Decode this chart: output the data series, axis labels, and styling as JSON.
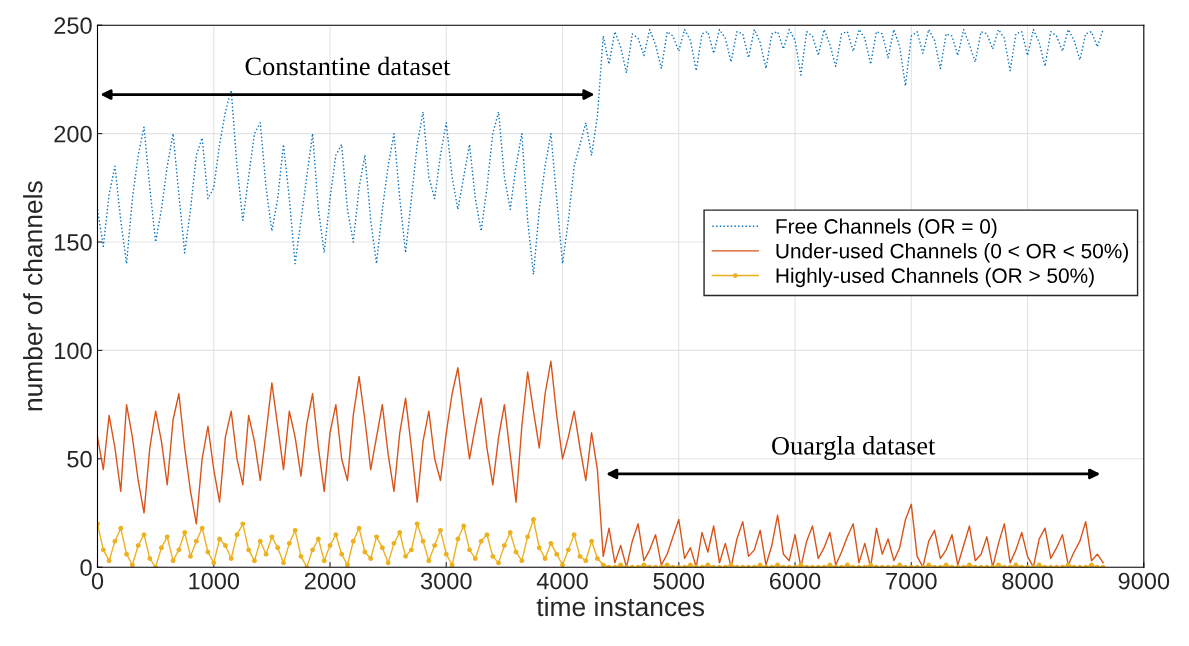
{
  "chart_data": {
    "type": "line",
    "xlabel": "time instances",
    "ylabel": "number of channels",
    "xlim": [
      0,
      9000
    ],
    "xticks": [
      0,
      1000,
      2000,
      3000,
      4000,
      5000,
      6000,
      7000,
      8000,
      9000
    ],
    "ylim": [
      0,
      250
    ],
    "yticks": [
      0,
      50,
      100,
      150,
      200,
      250
    ],
    "grid": true,
    "legend": "right",
    "annotations": [
      "Constantine dataset",
      "Ouargla dataset"
    ],
    "x": [
      0,
      50,
      100,
      150,
      200,
      250,
      300,
      350,
      400,
      450,
      500,
      550,
      600,
      650,
      700,
      750,
      800,
      850,
      900,
      950,
      1000,
      1050,
      1100,
      1150,
      1200,
      1250,
      1300,
      1350,
      1400,
      1450,
      1500,
      1550,
      1600,
      1650,
      1700,
      1750,
      1800,
      1850,
      1900,
      1950,
      2000,
      2050,
      2100,
      2150,
      2200,
      2250,
      2300,
      2350,
      2400,
      2450,
      2500,
      2550,
      2600,
      2650,
      2700,
      2750,
      2800,
      2850,
      2900,
      2950,
      3000,
      3050,
      3100,
      3150,
      3200,
      3250,
      3300,
      3350,
      3400,
      3450,
      3500,
      3550,
      3600,
      3650,
      3700,
      3750,
      3800,
      3850,
      3900,
      3950,
      4000,
      4050,
      4100,
      4150,
      4200,
      4250,
      4300,
      4350,
      4400,
      4450,
      4500,
      4550,
      4600,
      4650,
      4700,
      4750,
      4800,
      4850,
      4900,
      4950,
      5000,
      5050,
      5100,
      5150,
      5200,
      5250,
      5300,
      5350,
      5400,
      5450,
      5500,
      5550,
      5600,
      5650,
      5700,
      5750,
      5800,
      5850,
      5900,
      5950,
      6000,
      6050,
      6100,
      6150,
      6200,
      6250,
      6300,
      6350,
      6400,
      6450,
      6500,
      6550,
      6600,
      6650,
      6700,
      6750,
      6800,
      6850,
      6900,
      6950,
      7000,
      7050,
      7100,
      7150,
      7200,
      7250,
      7300,
      7350,
      7400,
      7450,
      7500,
      7550,
      7600,
      7650,
      7700,
      7750,
      7800,
      7850,
      7900,
      7950,
      8000,
      8050,
      8100,
      8150,
      8200,
      8250,
      8300,
      8350,
      8400,
      8450,
      8500,
      8550,
      8600,
      8650
    ],
    "series": [
      {
        "name": "Free Channels (OR = 0)",
        "color": "#0072bd",
        "line_style": "dotted",
        "marker": "none",
        "values": [
          165,
          148,
          172,
          185,
          160,
          140,
          170,
          190,
          203,
          175,
          150,
          165,
          185,
          200,
          172,
          145,
          165,
          190,
          198,
          170,
          175,
          195,
          210,
          220,
          185,
          160,
          180,
          200,
          205,
          175,
          155,
          170,
          195,
          170,
          140,
          160,
          180,
          200,
          165,
          145,
          170,
          190,
          195,
          165,
          150,
          175,
          190,
          160,
          140,
          165,
          185,
          200,
          170,
          145,
          170,
          195,
          210,
          180,
          170,
          190,
          205,
          180,
          165,
          180,
          195,
          170,
          155,
          175,
          200,
          210,
          180,
          165,
          185,
          200,
          160,
          135,
          165,
          185,
          200,
          170,
          140,
          160,
          185,
          195,
          205,
          190,
          208,
          245,
          232,
          247,
          240,
          228,
          246,
          244,
          236,
          248,
          241,
          230,
          247,
          245,
          238,
          248,
          243,
          229,
          246,
          247,
          237,
          248,
          244,
          233,
          247,
          246,
          235,
          248,
          242,
          230,
          246,
          247,
          239,
          248,
          243,
          227,
          247,
          245,
          236,
          248,
          241,
          231,
          246,
          247,
          238,
          248,
          244,
          232,
          247,
          246,
          235,
          248,
          240,
          222,
          245,
          247,
          237,
          248,
          243,
          230,
          246,
          245,
          236,
          248,
          241,
          233,
          247,
          246,
          239,
          248,
          244,
          229,
          246,
          247,
          236,
          248,
          242,
          231,
          247,
          245,
          238,
          248,
          243,
          234,
          246,
          247,
          240,
          248
        ]
      },
      {
        "name": "Under-used Channels (0 < OR < 50%)",
        "color": "#d95319",
        "line_style": "solid",
        "marker": "none",
        "values": [
          60,
          45,
          70,
          55,
          35,
          75,
          60,
          40,
          25,
          55,
          72,
          58,
          38,
          68,
          80,
          55,
          35,
          20,
          50,
          65,
          45,
          30,
          60,
          72,
          50,
          38,
          70,
          58,
          40,
          62,
          85,
          65,
          45,
          72,
          60,
          42,
          66,
          80,
          55,
          35,
          62,
          75,
          50,
          40,
          70,
          88,
          68,
          45,
          60,
          75,
          52,
          35,
          62,
          78,
          55,
          30,
          58,
          72,
          50,
          40,
          62,
          80,
          92,
          70,
          50,
          65,
          78,
          55,
          38,
          60,
          75,
          52,
          30,
          65,
          90,
          72,
          55,
          80,
          95,
          70,
          50,
          60,
          72,
          55,
          40,
          62,
          45,
          5,
          18,
          2,
          10,
          0,
          12,
          20,
          3,
          8,
          15,
          1,
          6,
          14,
          22,
          4,
          9,
          0,
          16,
          7,
          19,
          2,
          11,
          0,
          13,
          21,
          5,
          8,
          17,
          1,
          10,
          24,
          6,
          3,
          15,
          0,
          12,
          19,
          4,
          9,
          16,
          1,
          7,
          14,
          20,
          2,
          11,
          0,
          18,
          6,
          13,
          3,
          9,
          22,
          29,
          5,
          0,
          12,
          17,
          4,
          8,
          15,
          1,
          10,
          19,
          3,
          6,
          14,
          0,
          11,
          20,
          2,
          8,
          16,
          5,
          0,
          13,
          18,
          4,
          9,
          15,
          1,
          7,
          12,
          21,
          3,
          6,
          2
        ]
      },
      {
        "name": "Highly-used Channels (OR > 50%)",
        "color": "#edb120",
        "line_style": "solid",
        "marker": "circle",
        "values": [
          20,
          8,
          3,
          12,
          18,
          6,
          1,
          10,
          15,
          4,
          0,
          9,
          14,
          3,
          8,
          16,
          5,
          12,
          18,
          7,
          2,
          13,
          10,
          4,
          15,
          20,
          8,
          3,
          12,
          6,
          14,
          9,
          2,
          11,
          17,
          5,
          0,
          8,
          13,
          3,
          10,
          15,
          6,
          1,
          12,
          18,
          7,
          4,
          14,
          9,
          2,
          11,
          16,
          5,
          8,
          20,
          12,
          3,
          10,
          17,
          6,
          1,
          13,
          19,
          8,
          4,
          12,
          15,
          5,
          2,
          10,
          16,
          7,
          3,
          14,
          22,
          9,
          4,
          11,
          6,
          1,
          8,
          15,
          5,
          3,
          12,
          4,
          1,
          0,
          0,
          1,
          0,
          0,
          0,
          1,
          0,
          0,
          0,
          1,
          0,
          0,
          0,
          1,
          0,
          0,
          1,
          0,
          0,
          0,
          1,
          0,
          0,
          0,
          0,
          1,
          0,
          0,
          1,
          0,
          0,
          0,
          1,
          0,
          0,
          0,
          0,
          1,
          0,
          0,
          1,
          0,
          0,
          0,
          1,
          0,
          0,
          0,
          0,
          1,
          0,
          0,
          0,
          0,
          1,
          0,
          0,
          1,
          0,
          0,
          0,
          1,
          0,
          0,
          0,
          0,
          1,
          0,
          0,
          1,
          0,
          0,
          0,
          1,
          0,
          0,
          0,
          0,
          1,
          0,
          0,
          0,
          1,
          0,
          0
        ]
      }
    ]
  }
}
